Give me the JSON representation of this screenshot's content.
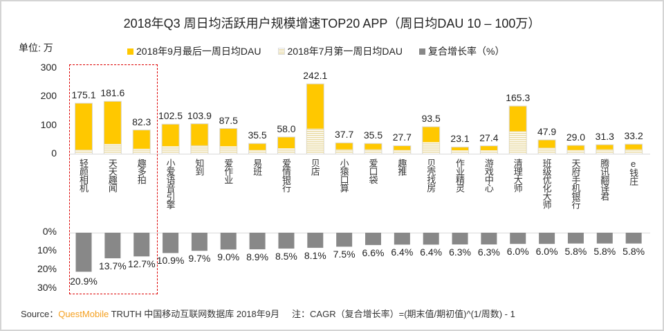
{
  "title": "2018年Q3 周日均活跃用户规模增速TOP20 APP（周日均DAU 10 – 100万）",
  "unit_label": "单位: 万",
  "source": {
    "prefix": "Source：",
    "brand": "QuestMobile",
    "rest": " TRUTH 中国移动互联网数据库 2018年9月     注：CAGR（复合增长率）=(期末值/期初值)^(1/周数) - 1"
  },
  "colors": {
    "sep": "#ffc800",
    "jul": "#e6d7a0",
    "cagr": "#888888",
    "highlight": "#dd0000",
    "brand": "#f5a020"
  },
  "chart_data": [
    {
      "type": "bar",
      "title": "",
      "ylabel": "单位: 万",
      "ylim": [
        0,
        300
      ],
      "yticks": [
        "300",
        "200",
        "100",
        "0"
      ],
      "legend": [
        "2018年9月最后一周日均DAU",
        "2018年7月第一周日均DAU",
        "复合增长率（%）"
      ],
      "legend_position": "top",
      "categories": [
        "轻颜相机",
        "天天趣闻",
        "趣多拍",
        "小爱语音引擎",
        "知到",
        "爱作业",
        "易班",
        "爱情银行",
        "贝店",
        "小猿口算",
        "爱口袋",
        "趣推",
        "贝壳找房",
        "作业精灵",
        "游戏中心",
        "清理大师",
        "班级优化大师",
        "天府手机银行",
        "腾讯翻译君",
        "e钱庄"
      ],
      "series": [
        {
          "name": "2018年9月最后一周日均DAU",
          "values": [
            175.1,
            181.6,
            82.3,
            102.5,
            103.9,
            87.5,
            35.5,
            58.0,
            242.1,
            37.7,
            35.5,
            27.7,
            93.5,
            23.1,
            27.4,
            165.3,
            47.9,
            29.0,
            31.3,
            33.2
          ],
          "labels": [
            "175.1",
            "181.6",
            "82.3",
            "102.5",
            "103.9",
            "87.5",
            "35.5",
            "58.0",
            "242.1",
            "37.7",
            "35.5",
            "27.7",
            "93.5",
            "23.1",
            "27.4",
            "165.3",
            "47.9",
            "29.0",
            "31.3",
            "33.2"
          ]
        },
        {
          "name": "2018年7月第一周日均DAU",
          "values": [
            14,
            34,
            17,
            26,
            29,
            26,
            13,
            19,
            87,
            15,
            15,
            13,
            40,
            12,
            12,
            78,
            21,
            13,
            15,
            15
          ]
        }
      ]
    },
    {
      "type": "bar",
      "title": "复合增长率（%）",
      "ylim": [
        0,
        30
      ],
      "inverted": true,
      "yticks": [
        "0%",
        "10%",
        "20%",
        "30%"
      ],
      "values": [
        20.9,
        13.7,
        12.7,
        10.9,
        9.7,
        9.0,
        8.9,
        8.5,
        8.1,
        7.5,
        6.6,
        6.4,
        6.4,
        6.3,
        6.3,
        6.0,
        6.0,
        5.8,
        5.8,
        5.8
      ],
      "labels": [
        "20.9%",
        "13.7%",
        "12.7%",
        "10.9%",
        "9.7%",
        "9.0%",
        "8.9%",
        "8.5%",
        "8.1%",
        "7.5%",
        "6.6%",
        "6.4%",
        "6.4%",
        "6.3%",
        "6.3%",
        "6.0%",
        "6.0%",
        "5.8%",
        "5.8%",
        "5.8%"
      ]
    }
  ]
}
